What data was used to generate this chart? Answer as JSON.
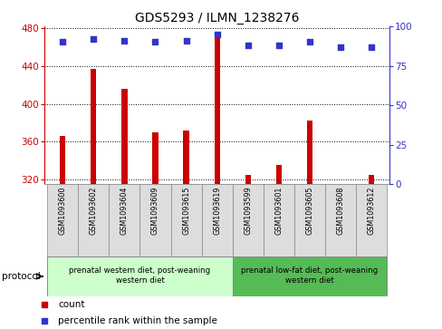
{
  "title": "GDS5293 / ILMN_1238276",
  "samples": [
    "GSM1093600",
    "GSM1093602",
    "GSM1093604",
    "GSM1093609",
    "GSM1093615",
    "GSM1093619",
    "GSM1093599",
    "GSM1093601",
    "GSM1093605",
    "GSM1093608",
    "GSM1093612"
  ],
  "counts": [
    366,
    437,
    416,
    370,
    372,
    473,
    325,
    335,
    382,
    315,
    325
  ],
  "percentile_ranks": [
    90,
    92,
    91,
    90,
    91,
    95,
    88,
    88,
    90,
    87,
    87
  ],
  "ylim_left": [
    315,
    482
  ],
  "yticks_left": [
    320,
    360,
    400,
    440,
    480
  ],
  "yticks_right": [
    0,
    25,
    50,
    75,
    100
  ],
  "bar_color": "#cc0000",
  "dot_color": "#3333cc",
  "group1_label": "prenatal western diet, post-weaning\nwestern diet",
  "group2_label": "prenatal low-fat diet, post-weaning\nwestern diet",
  "group1_count": 6,
  "group2_count": 5,
  "group1_bg": "#ccffcc",
  "group2_bg": "#55bb55",
  "sample_bg": "#dddddd",
  "legend_count_label": "count",
  "legend_percentile_label": "percentile rank within the sample",
  "protocol_label": "protocol",
  "title_fontsize": 10,
  "tick_fontsize": 7.5,
  "label_fontsize": 7
}
